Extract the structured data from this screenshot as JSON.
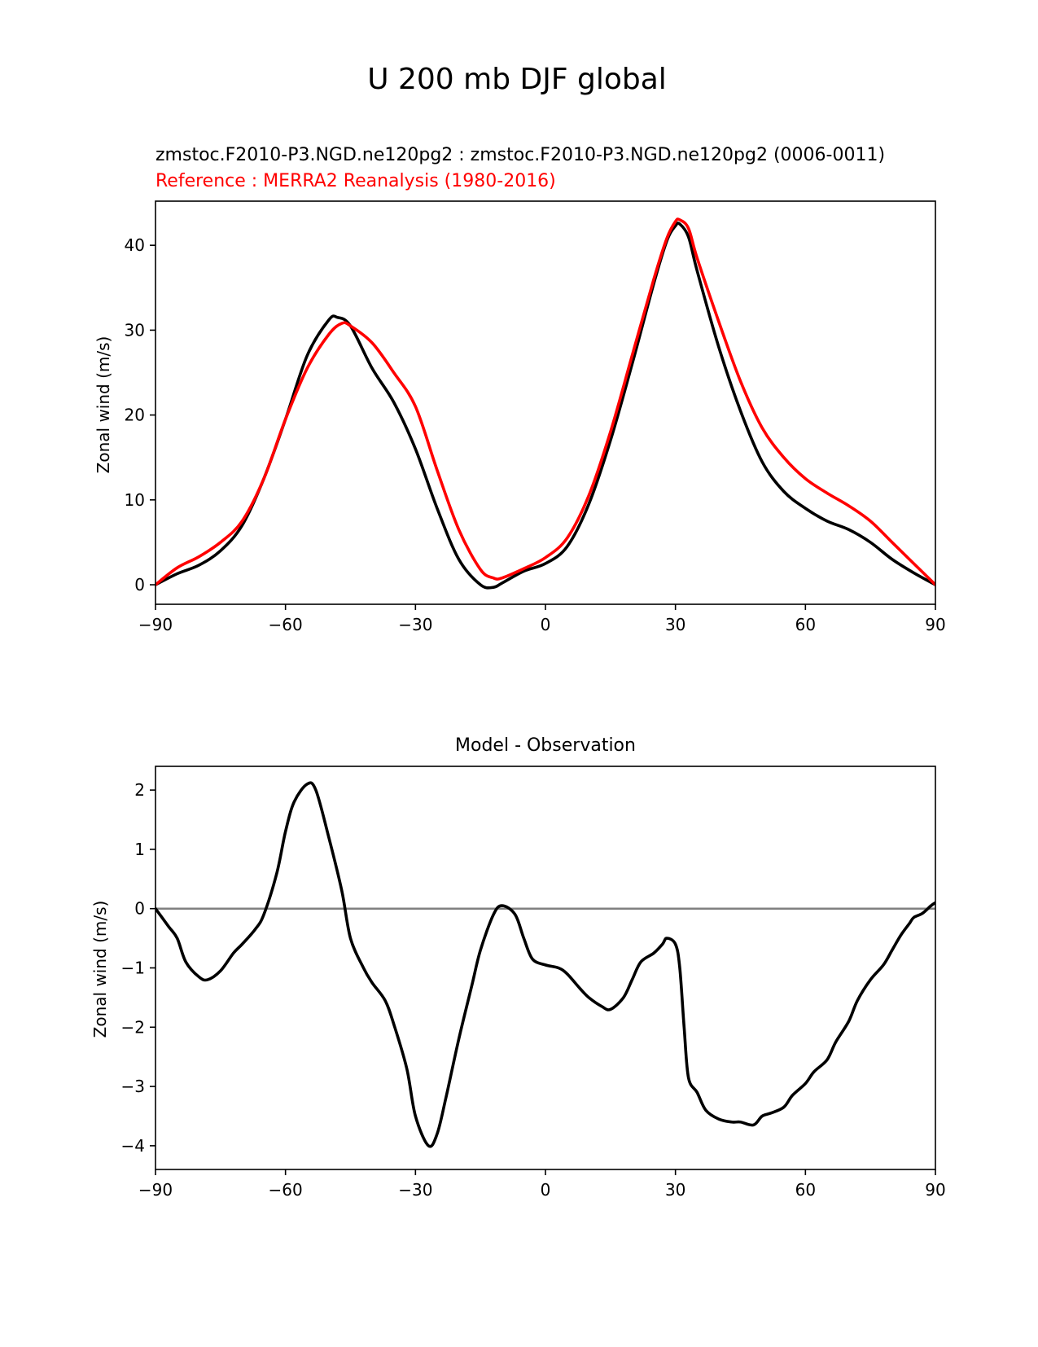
{
  "figure": {
    "title": "U 200 mb DJF global"
  },
  "colors": {
    "test": "#000000",
    "reference": "#ff0000",
    "zero_line": "#808080"
  },
  "chart_data": [
    {
      "type": "line",
      "title_test": "zmstoc.F2010-P3.NGD.ne120pg2 : zmstoc.F2010-P3.NGD.ne120pg2 (0006-0011)",
      "title_reference": "Reference : MERRA2 Reanalysis (1980-2016)",
      "xlabel": "",
      "ylabel": "Zonal wind (m/s)",
      "xlim": [
        -90,
        90
      ],
      "ylim": [
        -2.3,
        45.2
      ],
      "xticks": [
        -90,
        -60,
        -30,
        0,
        30,
        60,
        90
      ],
      "xtick_labels": [
        "−90",
        "−60",
        "−30",
        "0",
        "30",
        "60",
        "90"
      ],
      "yticks": [
        0,
        10,
        20,
        30,
        40
      ],
      "ytick_labels": [
        "0",
        "10",
        "20",
        "30",
        "40"
      ],
      "series": [
        {
          "name": "test",
          "color": "#000000",
          "x": [
            -90,
            -85,
            -80,
            -75,
            -70,
            -65,
            -60,
            -55,
            -50,
            -48,
            -45,
            -40,
            -35,
            -30,
            -25,
            -20,
            -15,
            -12,
            -10,
            -5,
            0,
            5,
            10,
            15,
            20,
            25,
            28,
            30,
            31,
            33,
            35,
            40,
            45,
            50,
            55,
            60,
            65,
            70,
            75,
            80,
            85,
            90
          ],
          "y": [
            0,
            1.3,
            2.3,
            4.0,
            7.0,
            12.5,
            19.5,
            27.0,
            31.2,
            31.5,
            30.5,
            25.5,
            21.5,
            16.0,
            9.0,
            3.0,
            0.0,
            -0.3,
            0.2,
            1.6,
            2.5,
            4.5,
            9.5,
            17.0,
            26.0,
            35.5,
            40.5,
            42.3,
            42.5,
            41.0,
            37.0,
            28.0,
            20.5,
            14.5,
            11.0,
            9.0,
            7.5,
            6.5,
            5.0,
            3.0,
            1.4,
            0
          ]
        },
        {
          "name": "reference",
          "color": "#ff0000",
          "x": [
            -90,
            -85,
            -80,
            -75,
            -70,
            -65,
            -60,
            -55,
            -50,
            -47,
            -45,
            -40,
            -35,
            -30,
            -25,
            -20,
            -15,
            -12,
            -10,
            -5,
            0,
            5,
            10,
            15,
            20,
            25,
            28,
            30,
            31,
            33,
            35,
            40,
            45,
            50,
            55,
            60,
            65,
            70,
            75,
            80,
            85,
            90
          ],
          "y": [
            0,
            2.0,
            3.3,
            5.0,
            7.5,
            12.5,
            19.5,
            25.5,
            29.5,
            30.8,
            30.5,
            28.5,
            25.0,
            21.0,
            13.5,
            6.5,
            1.8,
            0.8,
            0.8,
            1.9,
            3.2,
            5.5,
            10.5,
            18.0,
            27.0,
            36.0,
            40.8,
            42.8,
            43.0,
            42.0,
            38.5,
            31.0,
            24.0,
            18.5,
            15.0,
            12.5,
            10.8,
            9.3,
            7.5,
            5.0,
            2.5,
            0
          ]
        }
      ]
    },
    {
      "type": "line",
      "title": "Model - Observation",
      "xlabel": "",
      "ylabel": "Zonal wind (m/s)",
      "xlim": [
        -90,
        90
      ],
      "ylim": [
        -4.4,
        2.4
      ],
      "xticks": [
        -90,
        -60,
        -30,
        0,
        30,
        60,
        90
      ],
      "xtick_labels": [
        "−90",
        "−60",
        "−30",
        "0",
        "30",
        "60",
        "90"
      ],
      "yticks": [
        -4,
        -3,
        -2,
        -1,
        0,
        1,
        2
      ],
      "ytick_labels": [
        "−4",
        "−3",
        "−2",
        "−1",
        "0",
        "1",
        "2"
      ],
      "zero_line": 0,
      "series": [
        {
          "name": "difference",
          "color": "#000000",
          "x": [
            -90,
            -87,
            -85,
            -83,
            -80,
            -78,
            -75,
            -72,
            -70,
            -67,
            -65,
            -62,
            -60,
            -58,
            -55,
            -53,
            -50,
            -47,
            -45,
            -42,
            -40,
            -37,
            -35,
            -32,
            -30,
            -27,
            -25,
            -23,
            -20,
            -17,
            -15,
            -12,
            -10,
            -7,
            -5,
            -3,
            0,
            3,
            5,
            8,
            10,
            13,
            15,
            18,
            20,
            22,
            25,
            27,
            28,
            30,
            31,
            32,
            33,
            35,
            37,
            40,
            43,
            45,
            48,
            50,
            52,
            55,
            57,
            60,
            62,
            65,
            67,
            70,
            72,
            75,
            78,
            80,
            82,
            84,
            85,
            87,
            89,
            90
          ],
          "y": [
            0,
            -0.3,
            -0.5,
            -0.9,
            -1.15,
            -1.2,
            -1.05,
            -0.75,
            -0.6,
            -0.35,
            -0.1,
            0.6,
            1.3,
            1.8,
            2.1,
            2.0,
            1.2,
            0.3,
            -0.5,
            -1.0,
            -1.25,
            -1.55,
            -1.95,
            -2.7,
            -3.5,
            -4.0,
            -3.8,
            -3.2,
            -2.2,
            -1.3,
            -0.7,
            -0.1,
            0.05,
            -0.1,
            -0.5,
            -0.85,
            -0.95,
            -1.0,
            -1.1,
            -1.35,
            -1.5,
            -1.65,
            -1.7,
            -1.5,
            -1.2,
            -0.9,
            -0.75,
            -0.6,
            -0.5,
            -0.6,
            -1.0,
            -2.0,
            -2.85,
            -3.1,
            -3.4,
            -3.55,
            -3.6,
            -3.6,
            -3.65,
            -3.5,
            -3.45,
            -3.35,
            -3.15,
            -2.95,
            -2.75,
            -2.55,
            -2.25,
            -1.9,
            -1.55,
            -1.2,
            -0.95,
            -0.7,
            -0.45,
            -0.25,
            -0.15,
            -0.08,
            0.05,
            0.1
          ]
        }
      ]
    }
  ]
}
